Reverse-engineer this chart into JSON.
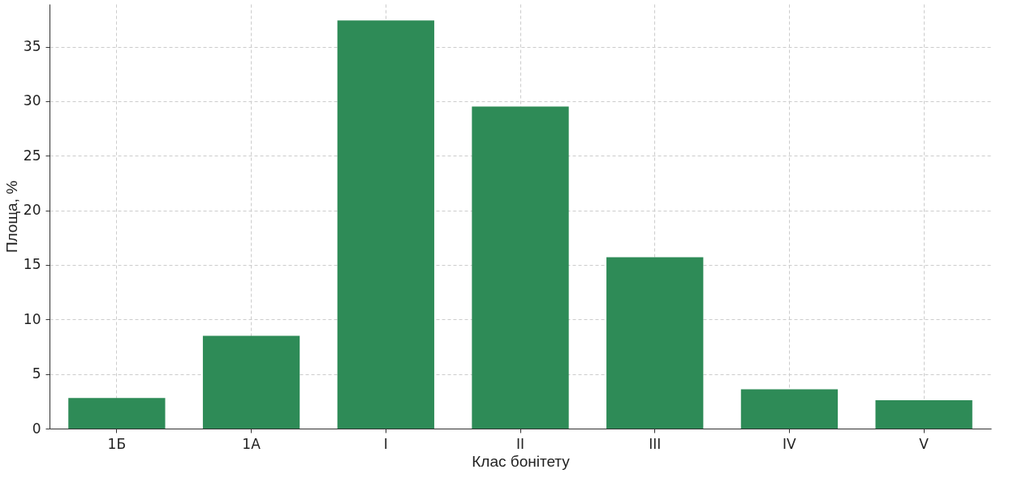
{
  "chart_data": {
    "type": "bar",
    "xlabel": "Клас бонітету",
    "ylabel": "Площа, %",
    "categories": [
      "1Б",
      "1А",
      "I",
      "II",
      "III",
      "IV",
      "V"
    ],
    "values": [
      2.8,
      8.5,
      37.4,
      29.5,
      15.7,
      3.6,
      2.6
    ],
    "color": "#2e8b57",
    "ylim": [
      0,
      38.9
    ],
    "yticks": [
      0,
      5,
      10,
      15,
      20,
      25,
      30,
      35
    ],
    "grid": true
  }
}
